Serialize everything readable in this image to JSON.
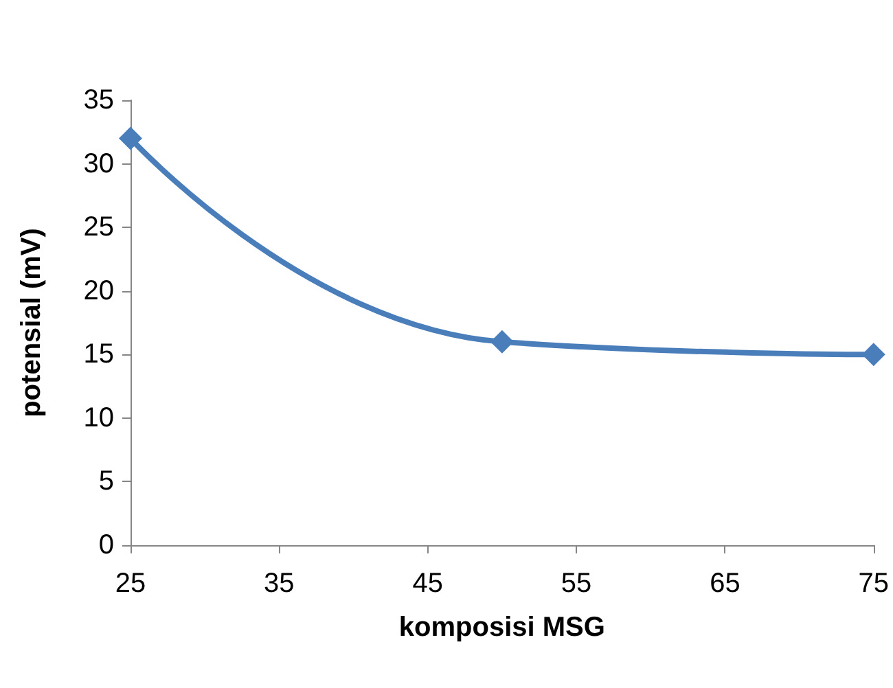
{
  "chart_data": {
    "type": "line",
    "xlabel": "komposisi MSG",
    "ylabel": "potensial (mV)",
    "x": [
      25,
      50,
      75
    ],
    "series": [
      {
        "color": "#4a7ebb",
        "values": [
          32,
          16,
          15
        ]
      }
    ],
    "xlim": [
      25,
      75
    ],
    "xticks": [
      25,
      35,
      45,
      55,
      65,
      75
    ],
    "ylim": [
      0,
      35
    ],
    "yticks": [
      0,
      5,
      10,
      15,
      20,
      25,
      30,
      35
    ],
    "grid": false,
    "marker": "diamond",
    "line_style": "solid"
  }
}
